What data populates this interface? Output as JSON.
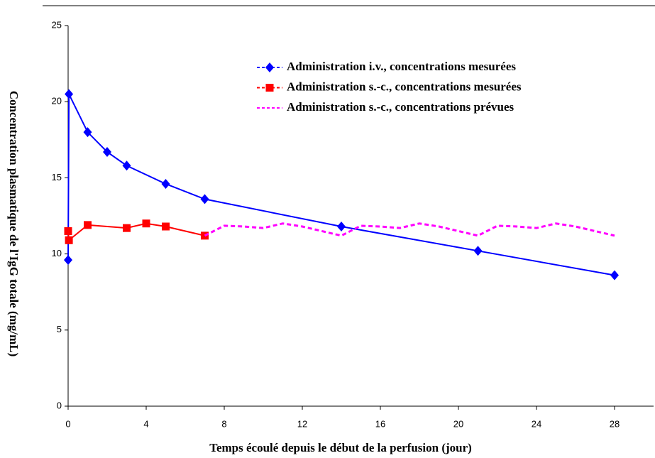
{
  "chart_data": {
    "type": "line",
    "x_label": "Temps écoulé depuis le début de la perfusion (jour)",
    "y_label": "Concentration plasmatique de l'IgG totale (mg/mL)",
    "xlim": [
      0,
      30
    ],
    "xticks": [
      0,
      4,
      8,
      12,
      16,
      20,
      24,
      28
    ],
    "ylim": [
      0,
      25
    ],
    "yticks": [
      0,
      5,
      10,
      15,
      20,
      25
    ],
    "legend": "top-right",
    "series": [
      {
        "name": "Administration i.v., concentrations mesurées",
        "color": "#0000ff",
        "marker": "diamond",
        "dash": false,
        "x": [
          0,
          0.04,
          1,
          2,
          3,
          5,
          7,
          14,
          21,
          28
        ],
        "values": [
          9.6,
          20.5,
          18.0,
          16.7,
          15.8,
          14.6,
          13.6,
          11.8,
          10.2,
          8.6
        ]
      },
      {
        "name": "Administration s.-c., concentrations mesurées",
        "color": "#ff0000",
        "marker": "square",
        "dash": false,
        "x": [
          0,
          0.04,
          1,
          3,
          4,
          5,
          7
        ],
        "values": [
          11.5,
          10.9,
          11.9,
          11.7,
          12.0,
          11.8,
          11.2
        ]
      },
      {
        "name": "Administration s.-c., concentrations prévues",
        "color": "#ff00ff",
        "marker": "none",
        "dash": true,
        "x": [
          7,
          8,
          9,
          10,
          11,
          12,
          13,
          14,
          15,
          16,
          17,
          18,
          19,
          20,
          21,
          22,
          23,
          24,
          25,
          26,
          27,
          28
        ],
        "values": [
          11.2,
          11.85,
          11.8,
          11.7,
          12.0,
          11.8,
          11.5,
          11.2,
          11.85,
          11.8,
          11.7,
          12.0,
          11.8,
          11.5,
          11.2,
          11.85,
          11.8,
          11.7,
          12.0,
          11.8,
          11.5,
          11.2
        ]
      }
    ]
  }
}
